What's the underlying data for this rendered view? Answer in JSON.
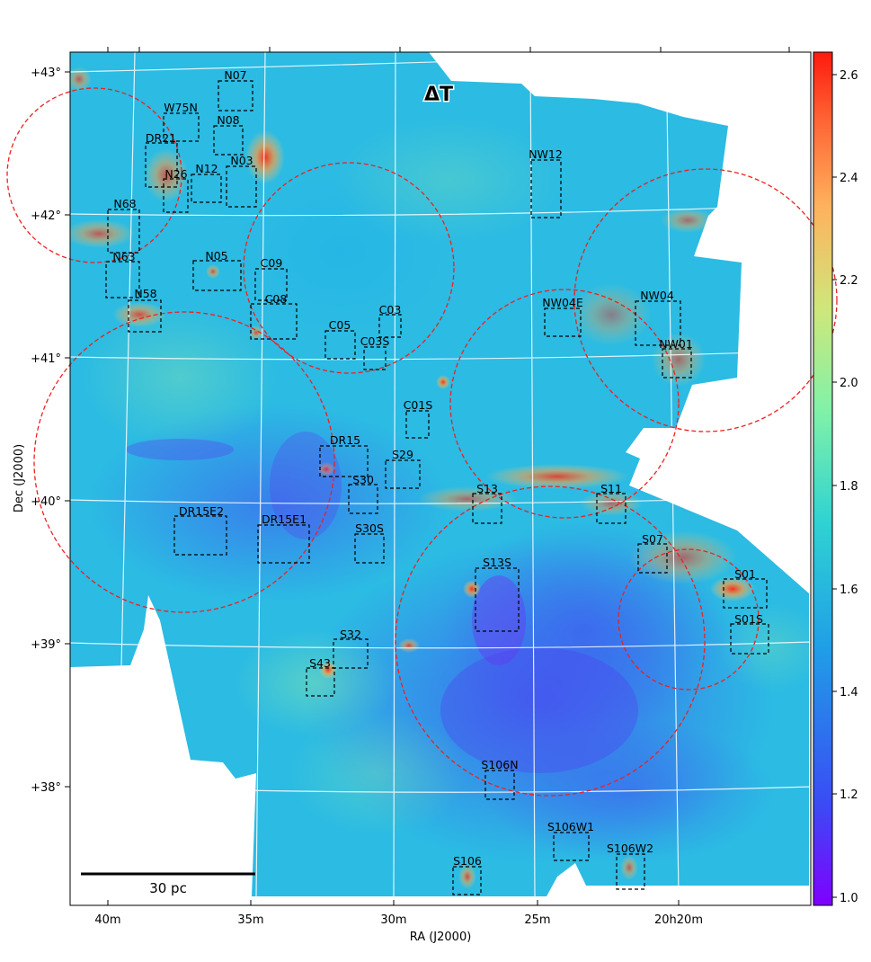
{
  "map": {
    "title": "ΔT",
    "xlabel": "RA (J2000)",
    "ylabel": "Dec (J2000)",
    "x_ticks": [
      "40m",
      "35m",
      "30m",
      "25m",
      "20h20m"
    ],
    "y_ticks": [
      "+43°",
      "+42°",
      "+41°",
      "+40°",
      "+39°",
      "+38°"
    ],
    "scalebar_label": "30 pc",
    "colorbar": {
      "colormap": "rainbow",
      "min": 0.98,
      "max": 2.64,
      "ticks": [
        "1.0",
        "1.2",
        "1.4",
        "1.6",
        "1.8",
        "2.0",
        "2.2",
        "2.4",
        "2.6"
      ],
      "colors": [
        "#7f00ff",
        "#2a6ff0",
        "#1fb6e0",
        "#7ff0b0",
        "#d6e879",
        "#ffb060",
        "#ff3a1a"
      ]
    },
    "accent_colors": {
      "circle": "#ee2020",
      "box": "#000000",
      "grid": "#ffffff"
    },
    "regions": [
      "N07",
      "W75N",
      "N08",
      "DR21",
      "N03",
      "N26",
      "N12",
      "N68",
      "N05",
      "C09",
      "N63",
      "N58",
      "C08",
      "C03",
      "C05",
      "C03S",
      "NW12",
      "NW04E",
      "NW04",
      "NW01",
      "C01S",
      "DR15",
      "S29",
      "S30",
      "S13",
      "S11",
      "DR15E2",
      "DR15E1",
      "S30S",
      "S07",
      "S13S",
      "S01",
      "S01S",
      "S32",
      "S43",
      "S106N",
      "S106W1",
      "S106W2",
      "S106"
    ]
  }
}
